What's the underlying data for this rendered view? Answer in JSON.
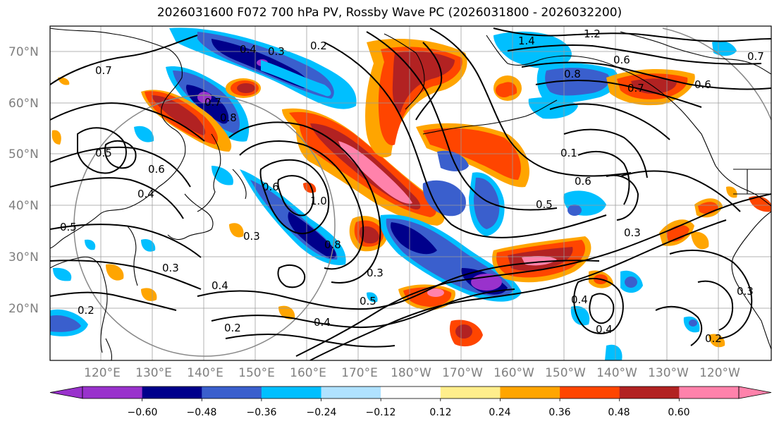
{
  "title": "2026031600 F072 700 hPa PV, Rossby Wave PC (2026031800 - 2026032200)",
  "lat_labels": [
    "70°N",
    "60°N",
    "50°N",
    "40°N",
    "30°N",
    "20°N"
  ],
  "lon_labels": [
    "120°E",
    "130°E",
    "140°E",
    "150°E",
    "160°E",
    "170°E",
    "180°W",
    "170°W",
    "160°W",
    "150°W",
    "140°W",
    "130°W",
    "120°W"
  ],
  "colorbar": {
    "colors": [
      "#9932cc",
      "#00008b",
      "#3a5fcd",
      "#00bfff",
      "#b0e2ff",
      "#ffffff",
      "#ffee8c",
      "#ffa500",
      "#ff4500",
      "#b22222",
      "#ff82ab"
    ],
    "tick_labels": [
      "−0.60",
      "−0.48",
      "−0.36",
      "−0.24",
      "−0.12",
      "0.12",
      "0.24",
      "0.36",
      "0.48",
      "0.60"
    ]
  },
  "contour_labels": [
    "1.2",
    "1.4",
    "0.4",
    "0.3",
    "0.2",
    "0.7",
    "0.7",
    "0.8",
    "0.6",
    "0.5",
    "0.6",
    "0.4",
    "1.0",
    "0.8",
    "0.3",
    "0.5",
    "0.3",
    "0.4",
    "0.2",
    "0.5",
    "0.4",
    "0.8",
    "0.6",
    "0.7",
    "0.1",
    "0.5",
    "0.6",
    "0.3",
    "0.4",
    "0.4",
    "0.3",
    "0.2",
    "0.3",
    "0.2",
    "0.7",
    "0.6"
  ]
}
